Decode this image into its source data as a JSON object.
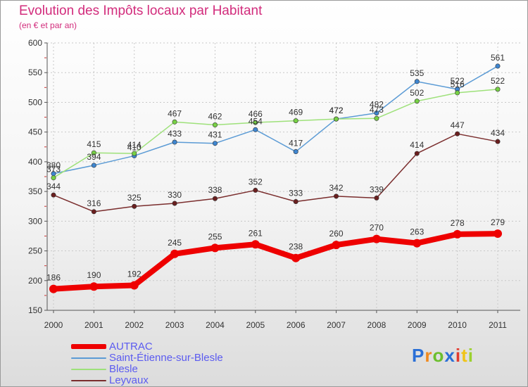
{
  "header": {
    "title": "Evolution des Impôts locaux par Habitant",
    "subtitle": "(en € et par an)"
  },
  "logo": {
    "letters": [
      "P",
      "r",
      "o",
      "x",
      "i",
      "t",
      "i"
    ],
    "colors": [
      "#2a6fd6",
      "#f08a1e",
      "#6cbf2d",
      "#2a6fd6",
      "#e23a2f",
      "#f0c419",
      "#9bd12e"
    ]
  },
  "chart_data": {
    "type": "line",
    "title": "Evolution des Impôts locaux par Habitant",
    "subtitle": "(en € et par an)",
    "xlabel": "",
    "ylabel": "",
    "ylim": [
      150,
      600
    ],
    "yticks": [
      150,
      200,
      250,
      300,
      350,
      400,
      450,
      500,
      550,
      600
    ],
    "categories": [
      "2000",
      "2001",
      "2002",
      "2003",
      "2004",
      "2005",
      "2006",
      "2007",
      "2008",
      "2009",
      "2010",
      "2011"
    ],
    "grid": true,
    "legend_position": "bottom-left",
    "series": [
      {
        "name": "AUTRAC",
        "color": "#ee0000",
        "marker": "#ee0000",
        "values": [
          186,
          190,
          192,
          245,
          255,
          261,
          238,
          260,
          270,
          263,
          278,
          279
        ]
      },
      {
        "name": "Saint-Étienne-sur-Blesle",
        "color": "#5b9bd5",
        "marker": "#3f86d0",
        "values": [
          380,
          394,
          410,
          433,
          431,
          454,
          417,
          472,
          482,
          535,
          522,
          561
        ]
      },
      {
        "name": "Blesle",
        "color": "#9ee17a",
        "marker": "#77d145",
        "values": [
          373,
          415,
          414,
          467,
          462,
          466,
          469,
          472,
          473,
          502,
          516,
          522
        ]
      },
      {
        "name": "Leyvaux",
        "color": "#7a2d2d",
        "marker": "#6a1f1f",
        "values": [
          344,
          316,
          325,
          330,
          338,
          352,
          333,
          342,
          339,
          414,
          447,
          434
        ]
      }
    ]
  }
}
